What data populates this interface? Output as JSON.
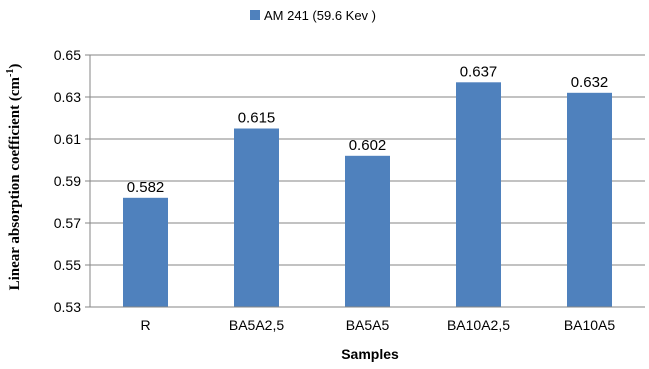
{
  "chart_data": {
    "type": "bar",
    "categories": [
      "R",
      "BA5A2,5",
      "BA5A5",
      "BA10A2,5",
      "BA10A5"
    ],
    "series": [
      {
        "name": "AM 241 (59.6  Kev )",
        "values": [
          0.582,
          0.615,
          0.602,
          0.637,
          0.632
        ]
      }
    ],
    "data_labels": [
      "0.582",
      "0.615",
      "0.602",
      "0.637",
      "0.632"
    ],
    "xlabel": "Samples",
    "ylabel_main": "Linear absorption coefficient (cm",
    "ylabel_sup": "-1",
    "ylabel_end": ")",
    "ylim": [
      0.53,
      0.65
    ],
    "yticks": [
      "0.53",
      "0.55",
      "0.57",
      "0.59",
      "0.61",
      "0.63",
      "0.65"
    ],
    "grid": true,
    "legend_position": "top-center",
    "bar_color": "#4f81bd",
    "grid_color": "#868686"
  }
}
